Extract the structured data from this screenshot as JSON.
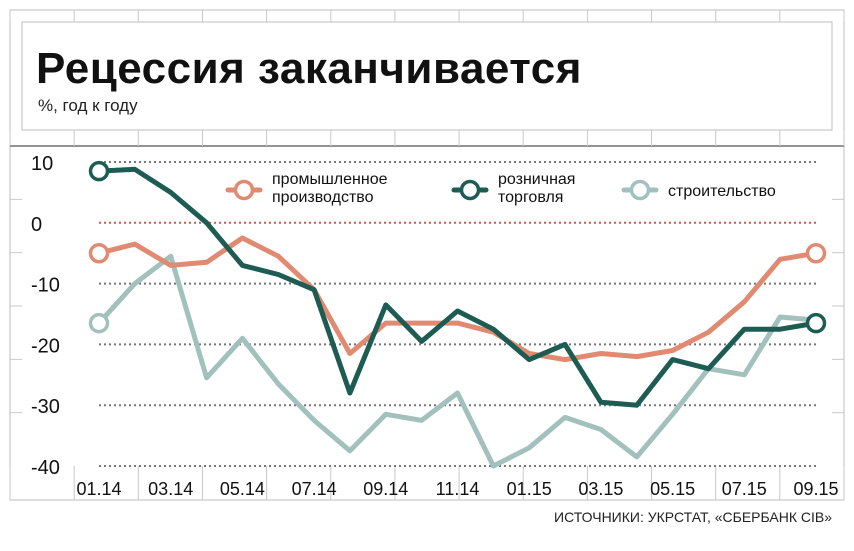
{
  "header": {
    "title": "Рецессия заканчивается",
    "subtitle": "%, год к году"
  },
  "footer": {
    "source": "ИСТОЧНИКИ: УКРСТАТ, «СБЕРБАНК СIB»"
  },
  "chart_data": {
    "type": "line",
    "title": "Рецессия заканчивается",
    "ylabel": "%, год к году",
    "ylim": [
      -40,
      10
    ],
    "yticks": [
      10,
      0,
      -10,
      -20,
      -30,
      -40
    ],
    "ytick_labels": [
      "10",
      "0",
      "-10",
      "-20",
      "-30",
      "-40"
    ],
    "x_labels": [
      "01.14",
      "03.14",
      "05.14",
      "07.14",
      "09.14",
      "11.14",
      "01.15",
      "03.15",
      "05.15",
      "07.15",
      "09.15"
    ],
    "x": [
      "01.14",
      "02.14",
      "03.14",
      "04.14",
      "05.14",
      "06.14",
      "07.14",
      "08.14",
      "09.14",
      "10.14",
      "11.14",
      "12.14",
      "01.15",
      "02.15",
      "03.15",
      "04.15",
      "05.15",
      "06.15",
      "07.15",
      "08.15",
      "09.15"
    ],
    "grid": true,
    "legend_position": "top",
    "series": [
      {
        "name": "промышленное производство",
        "color": "#e08a72",
        "values": [
          -5,
          -3.5,
          -7,
          -6.5,
          -2.5,
          -5.5,
          -11,
          -21.5,
          -16.5,
          -16.5,
          -16.5,
          -18,
          -21.5,
          -22.5,
          -21.5,
          -22,
          -21,
          -18,
          -13,
          -6,
          -5
        ]
      },
      {
        "name": "розничная торговля",
        "color": "#1d5c52",
        "values": [
          8.5,
          8.8,
          5,
          0,
          -7,
          -8.5,
          -11,
          -28,
          -13.5,
          -19.5,
          -14.5,
          -17.5,
          -22.5,
          -20,
          -29.5,
          -30,
          -22.5,
          -24,
          -17.5,
          -17.5,
          -16.5
        ]
      },
      {
        "name": "строительство",
        "color": "#a2c1bd",
        "values": [
          -16.5,
          -10,
          -5.5,
          -25.5,
          -19,
          -26.5,
          -32.5,
          -37.5,
          -31.5,
          -32.5,
          -28,
          -40,
          -37,
          -32,
          -34,
          -38.5,
          -31.5,
          -24,
          -25,
          -15.5,
          -16
        ]
      }
    ]
  }
}
